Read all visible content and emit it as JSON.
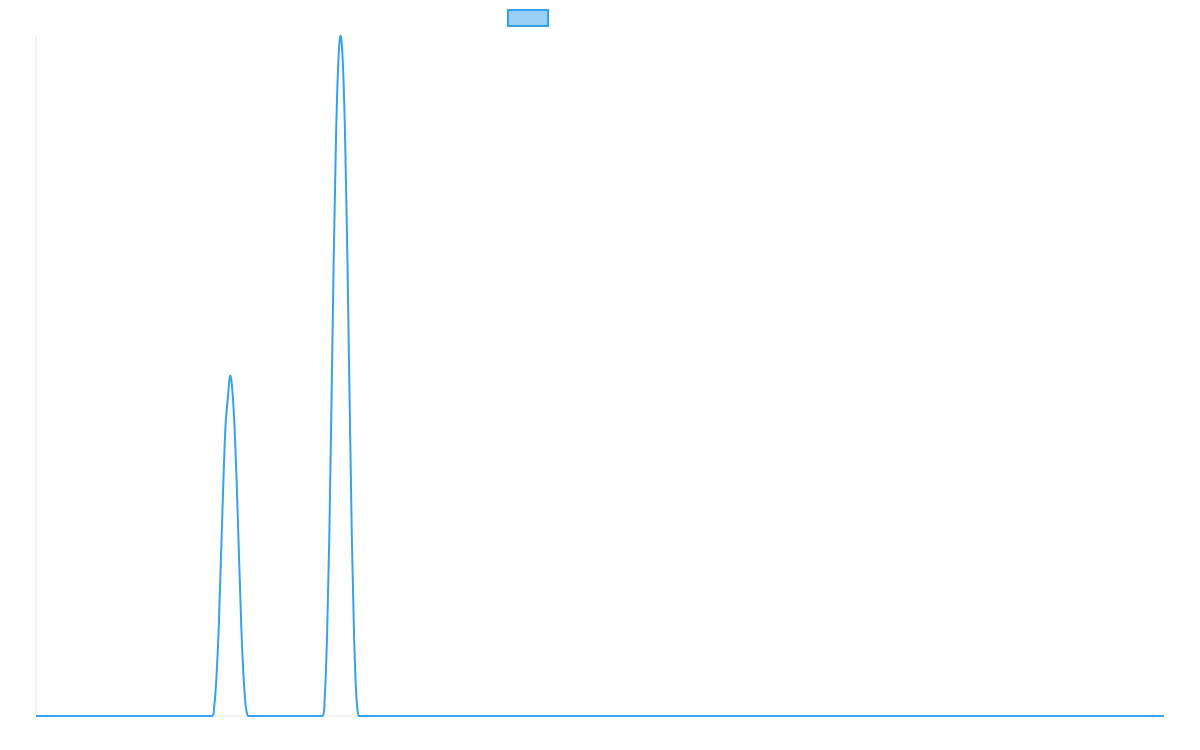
{
  "chart_data": {
    "type": "line",
    "title": "",
    "xlabel": "",
    "ylabel": "",
    "grid": false,
    "legend": {
      "placement": "top-center",
      "entries": [
        {
          "label": "",
          "fill": "#9ad0f5",
          "stroke": "#36a2eb"
        }
      ]
    },
    "xlim": [
      0,
      1000
    ],
    "ylim": [
      0,
      1
    ],
    "series": [
      {
        "color": "#36a2eb",
        "x": [
          0,
          156,
          158,
          160,
          162,
          164,
          166,
          168,
          170,
          172,
          174,
          176,
          178,
          180,
          182,
          184,
          186,
          188,
          190,
          192,
          194,
          196,
          254,
          256,
          258,
          260,
          262,
          264,
          266,
          268,
          270,
          272,
          274,
          276,
          278,
          280,
          282,
          284,
          286,
          288,
          290,
          292,
          294,
          1000
        ],
        "y": [
          0,
          0,
          0.014,
          0.058,
          0.131,
          0.233,
          0.34,
          0.426,
          0.466,
          0.5,
          0.48,
          0.426,
          0.34,
          0.233,
          0.131,
          0.058,
          0.014,
          0,
          0,
          0,
          0,
          0,
          0,
          0.029,
          0.117,
          0.262,
          0.466,
          0.68,
          0.853,
          0.961,
          1.0,
          0.961,
          0.853,
          0.68,
          0.466,
          0.262,
          0.117,
          0.029,
          0,
          0,
          0,
          0,
          0,
          0
        ]
      }
    ]
  }
}
